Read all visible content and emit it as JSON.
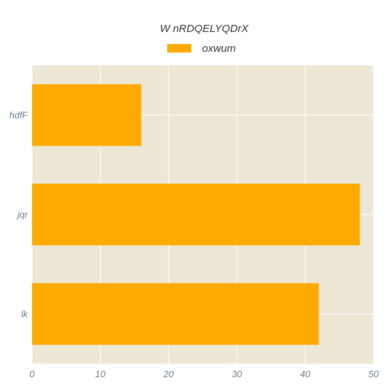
{
  "chart_data": {
    "type": "bar",
    "orientation": "horizontal",
    "title": "W nRDQELYQDrX",
    "categories": [
      "hdfF",
      "jqr",
      "lk"
    ],
    "series": [
      {
        "name": "oxwum",
        "values": [
          16,
          48,
          42
        ]
      }
    ],
    "xlim": [
      0,
      50
    ],
    "x_ticks": [
      0,
      10,
      20,
      30,
      40,
      50
    ],
    "xlabel": "",
    "ylabel": "",
    "grid": true,
    "legend_position": "top-center",
    "colors": {
      "bar": "#ffaa00",
      "plot_background": "#ede7d6",
      "grid": "#ffffff",
      "tick_text": "#6b7d8c",
      "title_text": "#333333"
    }
  }
}
